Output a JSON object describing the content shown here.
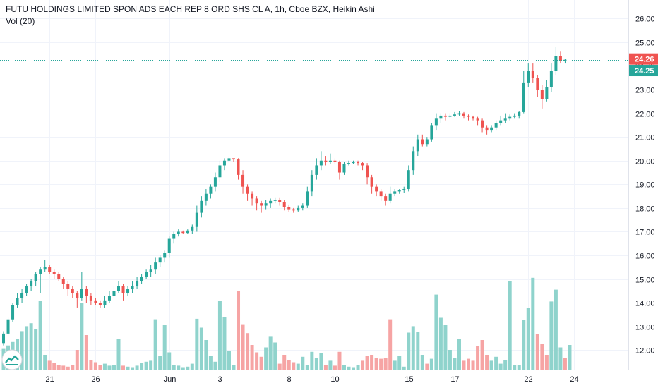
{
  "header": {
    "title": "FUTU HOLDINGS LIMITED SPON ADS EACH REP 8 ORD SHS CL A, 1h, Cboe BZX, Heikin Ashi",
    "volume_label": "Vol (20)"
  },
  "colors": {
    "up": "#26a69a",
    "down": "#ef5350",
    "up_volume": "#8fd3cc",
    "down_volume": "#f6a4a4",
    "price_line": "#26a69a",
    "grid": "#f0f3fa",
    "axis_text": "#131722",
    "logo": "#26a69a"
  },
  "logo_icon": "tradingview-logo-icon",
  "chart_data": {
    "type": "candlestick",
    "title": "FUTU HOLDINGS LIMITED SPON ADS EACH REP 8 ORD SHS CL A, 1h, Cboe BZX, Heikin Ashi",
    "indicator": "Vol (20)",
    "ylim": [
      11.55,
      26.35
    ],
    "y_ticks": [
      "12.00",
      "13.00",
      "14.00",
      "15.00",
      "16.00",
      "17.00",
      "18.00",
      "19.00",
      "20.00",
      "21.00",
      "22.00",
      "23.00",
      "24.00",
      "25.00",
      "26.00"
    ],
    "x_ticks": [
      {
        "label": "21",
        "index": 10
      },
      {
        "label": "26",
        "index": 20
      },
      {
        "label": "Jun",
        "index": 36
      },
      {
        "label": "3",
        "index": 47
      },
      {
        "label": "8",
        "index": 62
      },
      {
        "label": "10",
        "index": 72
      },
      {
        "label": "15",
        "index": 88
      },
      {
        "label": "17",
        "index": 98
      },
      {
        "label": "22",
        "index": 114
      },
      {
        "label": "24",
        "index": 124
      }
    ],
    "price_labels": [
      {
        "text": "24.26",
        "value": 24.26,
        "color": "#ef5350"
      },
      {
        "text": "24.25",
        "value": 24.25,
        "color": "#26a69a"
      }
    ],
    "price_line": 24.26,
    "candles": [
      [
        12.3,
        12.7,
        12.2,
        12.8
      ],
      [
        12.7,
        13.3,
        12.6,
        13.4
      ],
      [
        13.3,
        13.9,
        13.2,
        14.0
      ],
      [
        13.9,
        14.2,
        13.8,
        14.4
      ],
      [
        14.2,
        14.4,
        14.0,
        14.6
      ],
      [
        14.4,
        14.7,
        14.3,
        14.8
      ],
      [
        14.7,
        14.9,
        14.5,
        15.0
      ],
      [
        14.9,
        15.2,
        14.7,
        15.3
      ],
      [
        15.2,
        15.4,
        14.4,
        15.5
      ],
      [
        15.4,
        15.5,
        15.3,
        15.8
      ],
      [
        15.5,
        15.3,
        15.2,
        15.6
      ],
      [
        15.3,
        15.2,
        15.0,
        15.4
      ],
      [
        15.2,
        15.0,
        14.9,
        15.3
      ],
      [
        15.0,
        14.8,
        14.6,
        15.1
      ],
      [
        14.8,
        14.6,
        14.3,
        14.9
      ],
      [
        14.6,
        14.4,
        14.2,
        14.7
      ],
      [
        14.4,
        14.2,
        13.8,
        14.5
      ],
      [
        14.2,
        14.6,
        14.1,
        15.3
      ],
      [
        14.6,
        14.3,
        14.0,
        14.7
      ],
      [
        14.3,
        14.1,
        13.9,
        14.4
      ],
      [
        14.1,
        14.0,
        13.9,
        14.2
      ],
      [
        14.0,
        13.9,
        13.8,
        14.1
      ],
      [
        13.9,
        14.1,
        13.8,
        14.3
      ],
      [
        14.1,
        14.3,
        14.0,
        14.5
      ],
      [
        14.3,
        14.5,
        14.2,
        14.7
      ],
      [
        14.5,
        14.7,
        14.4,
        14.9
      ],
      [
        14.7,
        14.4,
        14.1,
        14.8
      ],
      [
        14.4,
        14.6,
        14.3,
        14.7
      ],
      [
        14.6,
        14.7,
        14.4,
        14.9
      ],
      [
        14.7,
        14.9,
        14.6,
        15.1
      ],
      [
        14.9,
        15.1,
        14.8,
        15.2
      ],
      [
        15.1,
        15.3,
        15.0,
        15.4
      ],
      [
        15.3,
        15.4,
        15.1,
        15.6
      ],
      [
        15.4,
        15.7,
        15.2,
        15.9
      ],
      [
        15.7,
        15.9,
        15.5,
        16.0
      ],
      [
        15.9,
        16.1,
        15.7,
        16.2
      ],
      [
        16.1,
        16.7,
        15.9,
        16.8
      ],
      [
        16.7,
        16.9,
        16.5,
        17.0
      ],
      [
        16.9,
        17.0,
        16.8,
        17.1
      ],
      [
        17.0,
        16.95,
        16.9,
        17.05
      ],
      [
        16.95,
        17.05,
        16.9,
        17.1
      ],
      [
        17.05,
        17.2,
        16.9,
        17.3
      ],
      [
        17.2,
        17.8,
        17.0,
        18.1
      ],
      [
        17.8,
        18.3,
        17.6,
        18.5
      ],
      [
        18.3,
        18.6,
        18.1,
        18.8
      ],
      [
        18.6,
        18.9,
        18.4,
        19.0
      ],
      [
        18.9,
        19.3,
        18.7,
        19.5
      ],
      [
        19.3,
        19.8,
        19.1,
        20.0
      ],
      [
        19.8,
        20.0,
        19.6,
        20.1
      ],
      [
        20.0,
        20.1,
        19.9,
        20.2
      ],
      [
        20.1,
        20.05,
        19.95,
        20.1
      ],
      [
        20.05,
        19.4,
        19.2,
        20.1
      ],
      [
        19.4,
        18.9,
        18.6,
        19.6
      ],
      [
        18.9,
        18.6,
        18.3,
        19.0
      ],
      [
        18.6,
        18.4,
        18.1,
        18.7
      ],
      [
        18.4,
        18.2,
        17.9,
        18.5
      ],
      [
        18.2,
        18.1,
        17.8,
        18.3
      ],
      [
        18.1,
        18.2,
        17.95,
        18.35
      ],
      [
        18.2,
        18.3,
        18.0,
        18.4
      ],
      [
        18.3,
        18.35,
        18.2,
        18.45
      ],
      [
        18.35,
        18.25,
        18.1,
        18.45
      ],
      [
        18.25,
        18.05,
        17.9,
        18.35
      ],
      [
        18.05,
        17.95,
        17.85,
        18.15
      ],
      [
        17.95,
        17.9,
        17.8,
        18.0
      ],
      [
        17.9,
        18.0,
        17.85,
        18.1
      ],
      [
        18.0,
        18.1,
        17.9,
        18.2
      ],
      [
        18.1,
        18.7,
        18.0,
        18.9
      ],
      [
        18.7,
        19.4,
        18.5,
        19.6
      ],
      [
        19.4,
        19.8,
        19.2,
        20.1
      ],
      [
        19.8,
        20.0,
        19.6,
        20.4
      ],
      [
        20.0,
        19.95,
        19.8,
        20.2
      ],
      [
        19.95,
        20.0,
        19.85,
        20.3
      ],
      [
        20.0,
        19.95,
        19.85,
        20.1
      ],
      [
        19.95,
        19.5,
        19.2,
        20.0
      ],
      [
        19.5,
        19.85,
        19.4,
        19.95
      ],
      [
        19.85,
        19.9,
        19.8,
        20.0
      ],
      [
        19.9,
        19.95,
        19.85,
        20.0
      ],
      [
        19.95,
        19.9,
        19.8,
        20.0
      ],
      [
        19.9,
        19.8,
        19.6,
        19.95
      ],
      [
        19.8,
        19.3,
        19.0,
        19.9
      ],
      [
        19.3,
        18.9,
        18.6,
        19.4
      ],
      [
        18.9,
        18.7,
        18.5,
        19.0
      ],
      [
        18.7,
        18.5,
        18.3,
        18.8
      ],
      [
        18.5,
        18.3,
        18.1,
        18.6
      ],
      [
        18.3,
        18.6,
        18.2,
        18.9
      ],
      [
        18.6,
        18.7,
        18.5,
        18.8
      ],
      [
        18.7,
        18.75,
        18.6,
        18.8
      ],
      [
        18.75,
        18.8,
        18.65,
        18.9
      ],
      [
        18.8,
        19.6,
        18.7,
        19.8
      ],
      [
        19.6,
        20.4,
        19.4,
        20.6
      ],
      [
        20.4,
        20.9,
        20.2,
        21.1
      ],
      [
        20.9,
        20.7,
        20.6,
        21.1
      ],
      [
        20.7,
        20.9,
        20.6,
        21.0
      ],
      [
        20.9,
        21.5,
        20.8,
        21.6
      ],
      [
        21.5,
        21.8,
        21.3,
        22.0
      ],
      [
        21.8,
        21.9,
        21.6,
        22.0
      ],
      [
        21.9,
        21.85,
        21.7,
        22.0
      ],
      [
        21.85,
        21.9,
        21.8,
        22.0
      ],
      [
        21.9,
        21.95,
        21.85,
        22.05
      ],
      [
        21.95,
        22.0,
        21.9,
        22.1
      ],
      [
        22.0,
        21.9,
        21.8,
        22.05
      ],
      [
        21.9,
        21.85,
        21.7,
        21.95
      ],
      [
        21.85,
        21.8,
        21.7,
        21.9
      ],
      [
        21.8,
        21.7,
        21.5,
        21.85
      ],
      [
        21.7,
        21.4,
        21.2,
        21.8
      ],
      [
        21.4,
        21.3,
        21.1,
        21.5
      ],
      [
        21.3,
        21.4,
        21.2,
        21.5
      ],
      [
        21.4,
        21.6,
        21.3,
        21.7
      ],
      [
        21.6,
        21.7,
        21.5,
        21.9
      ],
      [
        21.7,
        21.8,
        21.6,
        22.0
      ],
      [
        21.8,
        21.85,
        21.7,
        21.95
      ],
      [
        21.85,
        21.9,
        21.8,
        22.0
      ],
      [
        21.9,
        22.05,
        21.8,
        22.1
      ],
      [
        22.05,
        23.3,
        22.0,
        23.8
      ],
      [
        23.3,
        23.8,
        23.1,
        24.1
      ],
      [
        23.8,
        23.5,
        23.3,
        24.1
      ],
      [
        23.5,
        23.0,
        22.7,
        23.6
      ],
      [
        23.0,
        22.6,
        22.2,
        23.2
      ],
      [
        22.6,
        23.1,
        22.5,
        23.4
      ],
      [
        23.1,
        23.8,
        22.9,
        24.1
      ],
      [
        23.8,
        24.4,
        23.6,
        24.8
      ],
      [
        24.4,
        24.2,
        24.1,
        24.6
      ],
      [
        24.2,
        24.26,
        24.1,
        24.3
      ]
    ],
    "volume": [
      [
        0.42,
        "up"
      ],
      [
        0.49,
        "up"
      ],
      [
        0.56,
        "up"
      ],
      [
        0.62,
        "up"
      ],
      [
        0.78,
        "up"
      ],
      [
        0.88,
        "up"
      ],
      [
        0.94,
        "up"
      ],
      [
        0.82,
        "up"
      ],
      [
        1.4,
        "up"
      ],
      [
        0.3,
        "up"
      ],
      [
        0.18,
        "down"
      ],
      [
        0.14,
        "down"
      ],
      [
        0.1,
        "down"
      ],
      [
        0.08,
        "down"
      ],
      [
        0.06,
        "down"
      ],
      [
        0.1,
        "down"
      ],
      [
        0.4,
        "down"
      ],
      [
        1.35,
        "up"
      ],
      [
        0.7,
        "down"
      ],
      [
        0.2,
        "down"
      ],
      [
        0.15,
        "down"
      ],
      [
        0.1,
        "down"
      ],
      [
        0.12,
        "up"
      ],
      [
        0.08,
        "up"
      ],
      [
        0.1,
        "up"
      ],
      [
        0.62,
        "up"
      ],
      [
        0.08,
        "down"
      ],
      [
        0.06,
        "up"
      ],
      [
        0.05,
        "up"
      ],
      [
        0.08,
        "up"
      ],
      [
        0.14,
        "up"
      ],
      [
        0.16,
        "up"
      ],
      [
        0.18,
        "up"
      ],
      [
        1.02,
        "up"
      ],
      [
        0.28,
        "up"
      ],
      [
        0.9,
        "up"
      ],
      [
        0.35,
        "up"
      ],
      [
        0.1,
        "up"
      ],
      [
        0.08,
        "up"
      ],
      [
        0.05,
        "up"
      ],
      [
        0.06,
        "up"
      ],
      [
        0.12,
        "up"
      ],
      [
        1.03,
        "up"
      ],
      [
        0.85,
        "up"
      ],
      [
        0.6,
        "up"
      ],
      [
        0.28,
        "up"
      ],
      [
        0.16,
        "up"
      ],
      [
        1.4,
        "up"
      ],
      [
        1.06,
        "up"
      ],
      [
        0.38,
        "up"
      ],
      [
        0.1,
        "up"
      ],
      [
        1.6,
        "down"
      ],
      [
        0.92,
        "down"
      ],
      [
        0.74,
        "down"
      ],
      [
        0.5,
        "down"
      ],
      [
        0.35,
        "down"
      ],
      [
        0.26,
        "down"
      ],
      [
        0.45,
        "up"
      ],
      [
        0.68,
        "up"
      ],
      [
        0.55,
        "up"
      ],
      [
        0.12,
        "down"
      ],
      [
        0.3,
        "down"
      ],
      [
        0.2,
        "down"
      ],
      [
        0.15,
        "down"
      ],
      [
        0.12,
        "up"
      ],
      [
        0.26,
        "up"
      ],
      [
        0.1,
        "up"
      ],
      [
        0.36,
        "up"
      ],
      [
        0.24,
        "up"
      ],
      [
        0.33,
        "up"
      ],
      [
        0.1,
        "down"
      ],
      [
        0.18,
        "up"
      ],
      [
        0.08,
        "down"
      ],
      [
        0.36,
        "down"
      ],
      [
        0.1,
        "up"
      ],
      [
        0.06,
        "up"
      ],
      [
        0.05,
        "up"
      ],
      [
        0.1,
        "up"
      ],
      [
        0.18,
        "down"
      ],
      [
        0.28,
        "down"
      ],
      [
        0.3,
        "down"
      ],
      [
        0.24,
        "down"
      ],
      [
        0.22,
        "down"
      ],
      [
        0.24,
        "down"
      ],
      [
        1.02,
        "down"
      ],
      [
        0.18,
        "up"
      ],
      [
        0.28,
        "up"
      ],
      [
        0.06,
        "up"
      ],
      [
        0.75,
        "up"
      ],
      [
        0.88,
        "up"
      ],
      [
        0.76,
        "up"
      ],
      [
        0.3,
        "up"
      ],
      [
        0.12,
        "down"
      ],
      [
        0.22,
        "up"
      ],
      [
        1.52,
        "up"
      ],
      [
        1.05,
        "up"
      ],
      [
        0.9,
        "up"
      ],
      [
        0.4,
        "up"
      ],
      [
        0.24,
        "up"
      ],
      [
        0.62,
        "up"
      ],
      [
        0.18,
        "down"
      ],
      [
        0.22,
        "down"
      ],
      [
        0.18,
        "down"
      ],
      [
        0.48,
        "down"
      ],
      [
        0.6,
        "down"
      ],
      [
        0.3,
        "down"
      ],
      [
        0.18,
        "up"
      ],
      [
        0.26,
        "up"
      ],
      [
        0.12,
        "up"
      ],
      [
        0.2,
        "up"
      ],
      [
        1.8,
        "up"
      ],
      [
        0.1,
        "up"
      ],
      [
        0.1,
        "up"
      ],
      [
        1.0,
        "up"
      ],
      [
        1.25,
        "up"
      ],
      [
        1.86,
        "up"
      ],
      [
        0.72,
        "down"
      ],
      [
        0.52,
        "down"
      ],
      [
        0.3,
        "down"
      ],
      [
        1.38,
        "up"
      ],
      [
        1.62,
        "up"
      ],
      [
        0.45,
        "up"
      ],
      [
        0.24,
        "down"
      ],
      [
        0.5,
        "up"
      ]
    ]
  }
}
